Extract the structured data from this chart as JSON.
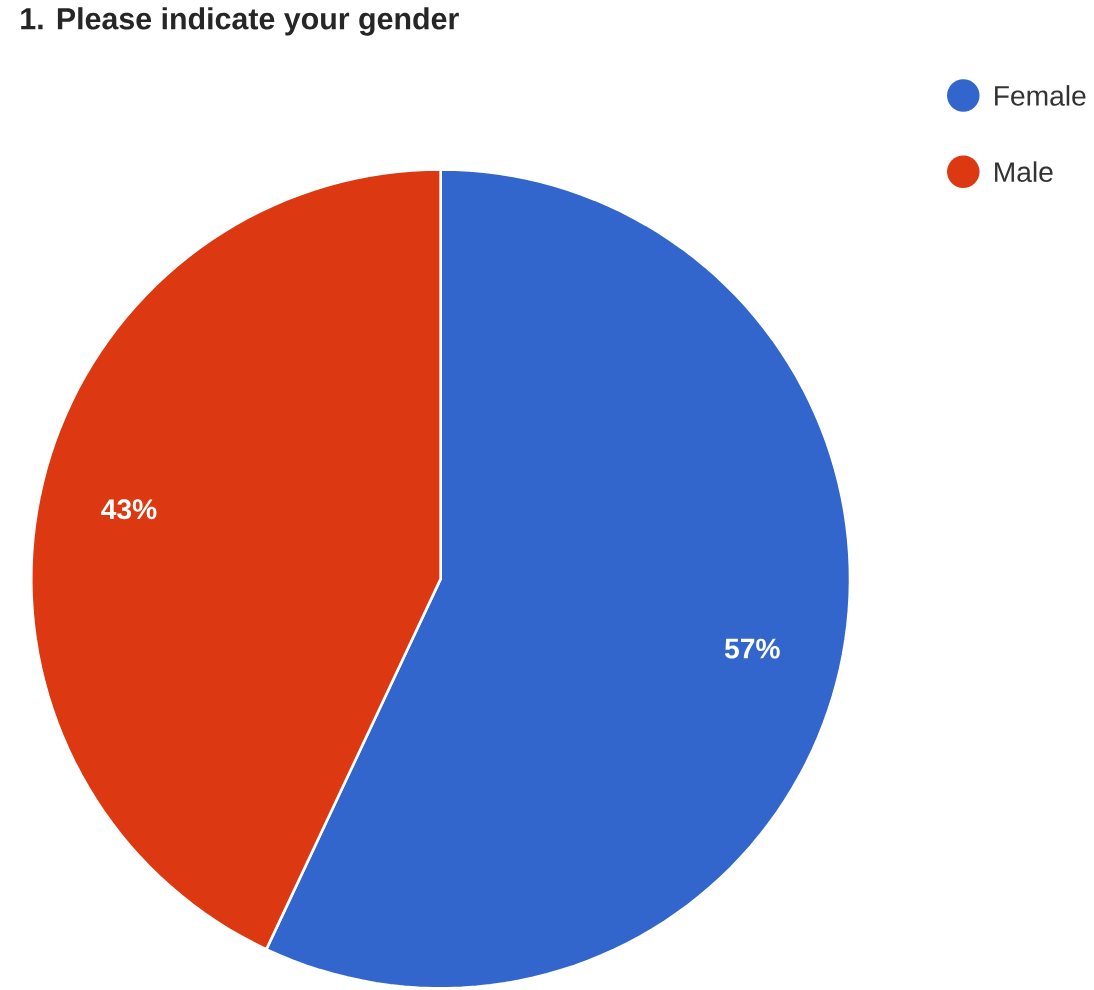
{
  "chart_data": {
    "type": "pie",
    "title": "1. Please indicate your gender",
    "categories": [
      "Female",
      "Male"
    ],
    "values": [
      57,
      43
    ],
    "colors": [
      "#3366cc",
      "#dc3912"
    ],
    "value_labels": [
      "57%",
      "43%"
    ],
    "legend": "top right"
  }
}
